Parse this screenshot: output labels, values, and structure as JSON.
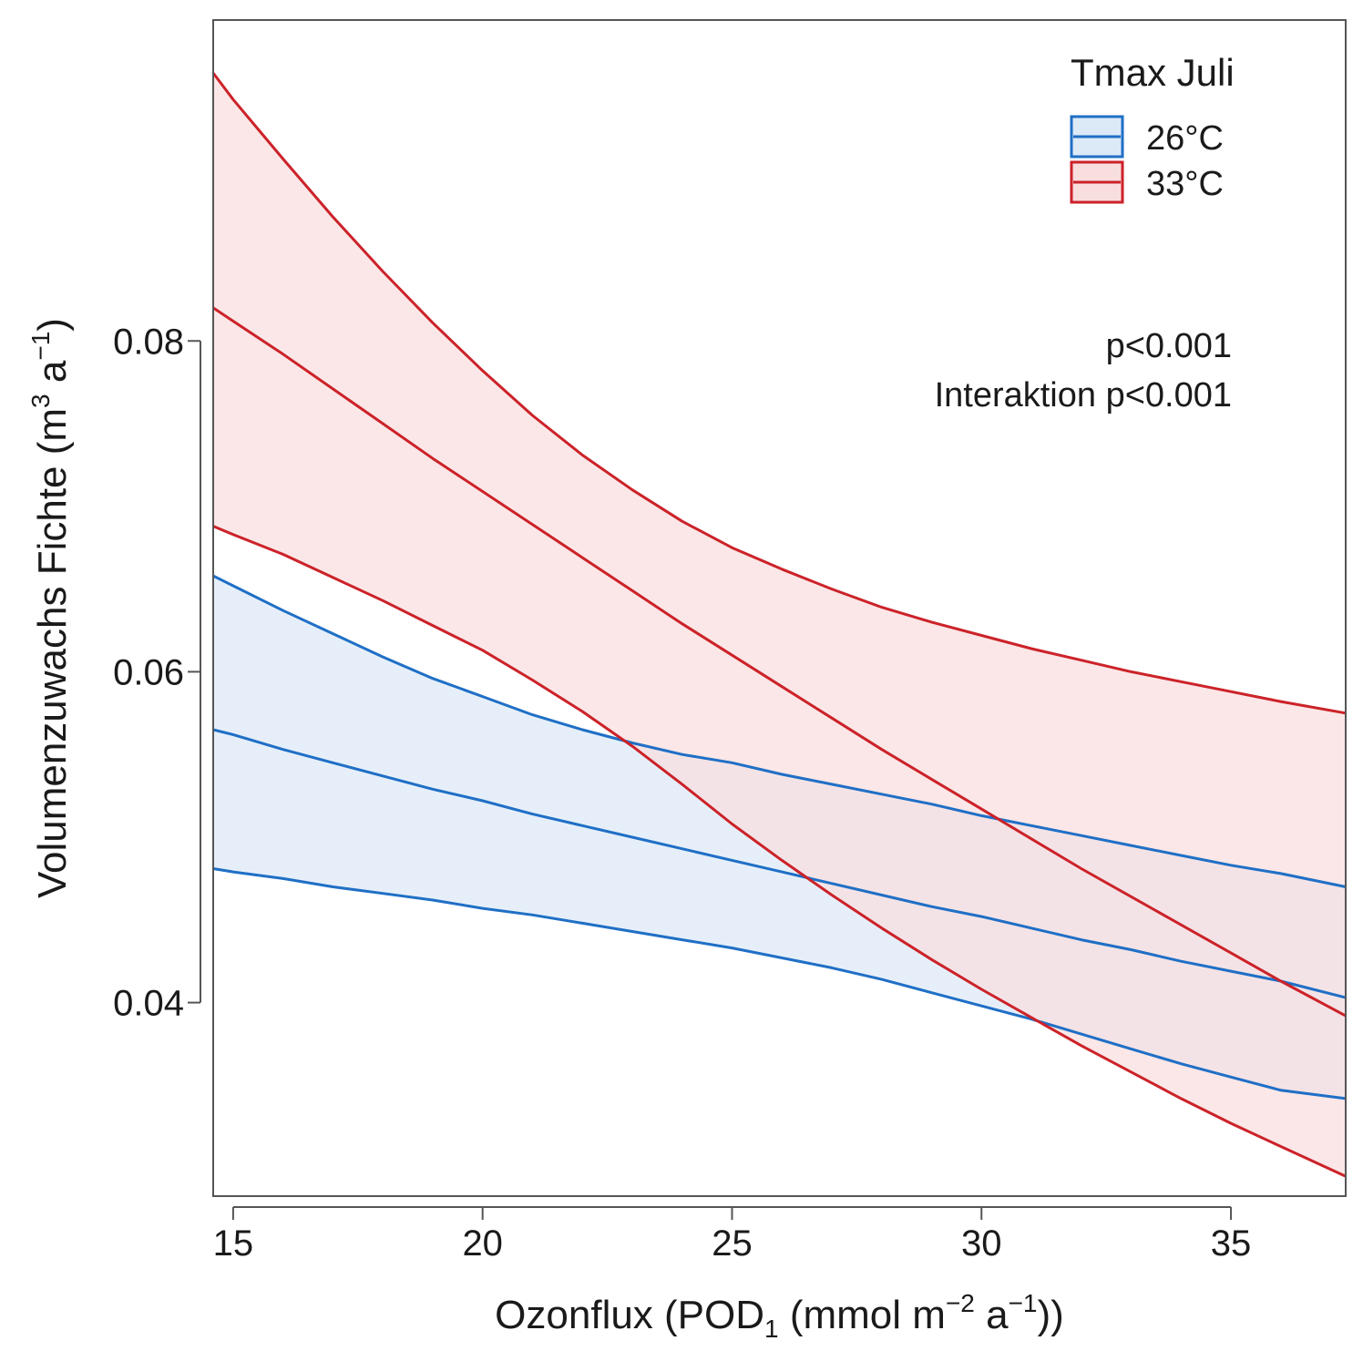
{
  "chart_data": {
    "type": "line",
    "title": "",
    "xlabel": {
      "pre": "Ozonflux (POD",
      "sub": "1",
      "mid1": " (mmol m",
      "sup1": "−2",
      "mid2": " a",
      "sup2": "−1",
      "post": "))"
    },
    "ylabel": {
      "pre": "Volumenzuwachs Fichte (m",
      "sup1": "3",
      "mid": " a",
      "sup2": "−1",
      "post": ")"
    },
    "xlim": [
      14.6,
      37.3
    ],
    "ylim": [
      0.0283,
      0.0994
    ],
    "xticks": [
      15,
      20,
      25,
      30,
      35
    ],
    "xtick_labels": [
      "15",
      "20",
      "25",
      "30",
      "35"
    ],
    "yticks": [
      0.04,
      0.06,
      0.08
    ],
    "ytick_labels": [
      "0.04",
      "0.06",
      "0.08"
    ],
    "grid": false,
    "legend": {
      "title": "Tmax Juli",
      "position": "top-right",
      "entries": [
        {
          "label": "26°C",
          "color": "#1f6fc6",
          "fill": "#dce9f7"
        },
        {
          "label": "33°C",
          "color": "#cc2229",
          "fill": "#f9dede"
        }
      ]
    },
    "annotations": [
      "p<0.001",
      "Interaktion p<0.001"
    ],
    "x": [
      14.6,
      15,
      16,
      17,
      18,
      19,
      20,
      21,
      22,
      23,
      24,
      25,
      26,
      27,
      28,
      29,
      30,
      31,
      32,
      33,
      34,
      35,
      36,
      37.3
    ],
    "series": [
      {
        "name": "26°C",
        "color": "#1f6fc6",
        "fill": "#dce9f7",
        "fit": [
          0.0565,
          0.0562,
          0.0553,
          0.0545,
          0.0537,
          0.0529,
          0.0522,
          0.0514,
          0.0507,
          0.05,
          0.0493,
          0.0486,
          0.0479,
          0.0472,
          0.0465,
          0.0458,
          0.0452,
          0.0445,
          0.0438,
          0.0432,
          0.0425,
          0.0419,
          0.0413,
          0.0403
        ],
        "lower": [
          0.0481,
          0.0479,
          0.0475,
          0.047,
          0.0466,
          0.0462,
          0.0457,
          0.0453,
          0.0448,
          0.0443,
          0.0438,
          0.0433,
          0.0427,
          0.0421,
          0.0414,
          0.0406,
          0.0398,
          0.039,
          0.0381,
          0.0372,
          0.0363,
          0.0355,
          0.0347,
          0.0342
        ],
        "upper": [
          0.0658,
          0.0652,
          0.0637,
          0.0623,
          0.0609,
          0.0596,
          0.0585,
          0.0574,
          0.0565,
          0.0557,
          0.055,
          0.0545,
          0.0538,
          0.0532,
          0.0526,
          0.052,
          0.0513,
          0.0507,
          0.0501,
          0.0495,
          0.0489,
          0.0483,
          0.0478,
          0.047
        ]
      },
      {
        "name": "33°C",
        "color": "#cc2229",
        "fill": "#f9dede",
        "fit": [
          0.082,
          0.0812,
          0.0792,
          0.0771,
          0.075,
          0.0729,
          0.0709,
          0.0689,
          0.0669,
          0.0649,
          0.0629,
          0.061,
          0.0591,
          0.0572,
          0.0553,
          0.0535,
          0.0517,
          0.0499,
          0.0481,
          0.0464,
          0.0447,
          0.043,
          0.0413,
          0.0392
        ],
        "lower": [
          0.0688,
          0.0683,
          0.0671,
          0.0657,
          0.0643,
          0.0628,
          0.0613,
          0.0595,
          0.0576,
          0.0555,
          0.0532,
          0.0508,
          0.0486,
          0.0465,
          0.0445,
          0.0426,
          0.0408,
          0.0391,
          0.0374,
          0.0358,
          0.0342,
          0.0327,
          0.0313,
          0.0295
        ],
        "upper": [
          0.0962,
          0.0946,
          0.091,
          0.0875,
          0.0842,
          0.0811,
          0.0782,
          0.0755,
          0.0731,
          0.071,
          0.0691,
          0.0675,
          0.0662,
          0.065,
          0.0639,
          0.063,
          0.0622,
          0.0614,
          0.0607,
          0.06,
          0.0594,
          0.0588,
          0.0582,
          0.0575
        ]
      }
    ]
  }
}
